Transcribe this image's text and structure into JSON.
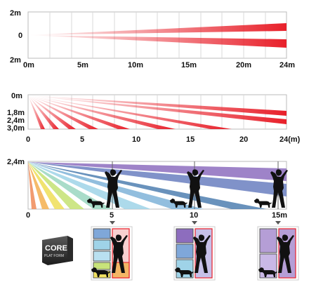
{
  "panel1": {
    "y_labels": [
      "2m",
      "0",
      "2m"
    ],
    "x_labels": [
      "0m",
      "5m",
      "10m",
      "15m",
      "20m",
      "24m"
    ],
    "beam_color": "#e8202a"
  },
  "panel2": {
    "y_labels": [
      "0m",
      "1,8m",
      "2,4m",
      "3,0m"
    ],
    "x_labels": [
      "0",
      "5",
      "10",
      "15",
      "20",
      "24(m)"
    ],
    "beam_color": "#e8202a"
  },
  "panel3": {
    "y_label": "2,4m",
    "x_labels": [
      "0",
      "5",
      "10",
      "15m"
    ],
    "beam_colors": [
      "#8d6dbe",
      "#6a7fc0",
      "#4f7fb0",
      "#7fb3d8",
      "#9fd3e8",
      "#9ad6c0",
      "#c8e37a",
      "#f0e060",
      "#f4b45a",
      "#f09060"
    ]
  },
  "logo": {
    "line1": "CORE",
    "line2": "PLAT FORM"
  },
  "zones": {
    "colors_near": [
      "#7fa7d9",
      "#9fd3e8",
      "#c8e37a",
      "#f4b45a"
    ],
    "colors_mid": [
      "#8d6dbe",
      "#7fa7d9",
      "#9fd3e8"
    ],
    "colors_far": [
      "#b59ed6",
      "#8d6dbe"
    ],
    "frame_color": "#e8202a"
  }
}
